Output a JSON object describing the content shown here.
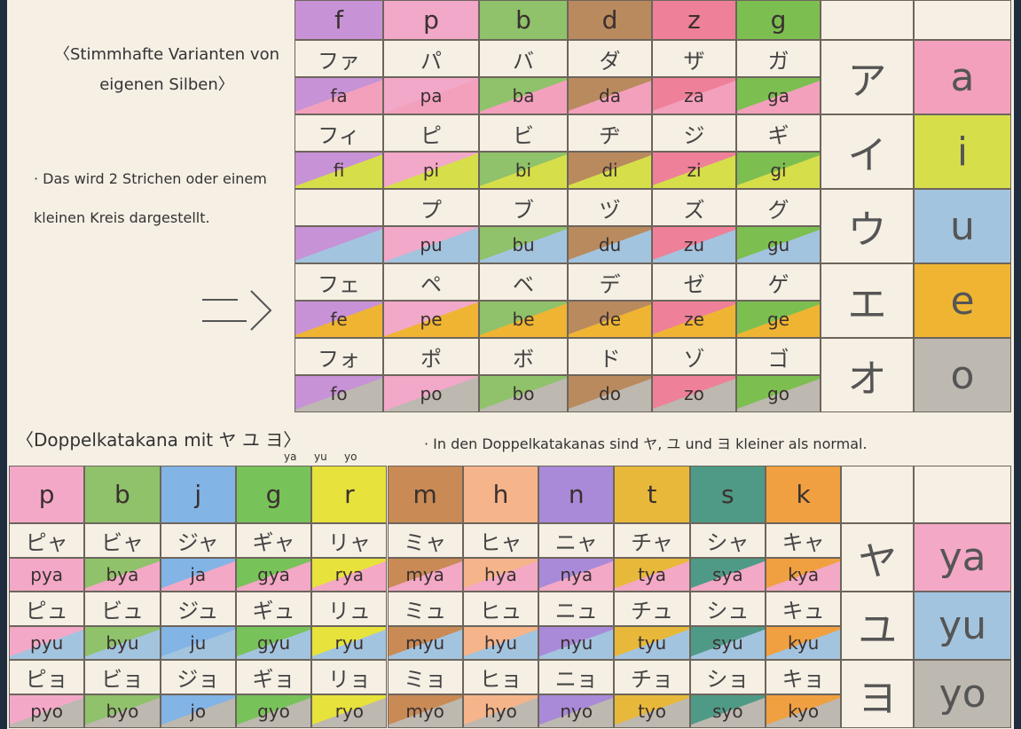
{
  "top": {
    "title": "〈Stimmhafte Varianten von eigenen Silben〉",
    "note": "· Das wird 2 Strichen oder einem kleinen Kreis dargestellt.",
    "headers": [
      "f",
      "p",
      "b",
      "d",
      "z",
      "g"
    ],
    "rows": [
      {
        "kana": "ア",
        "vowel": "a",
        "cells": [
          {
            "kana": "ファ",
            "romaji": "fa"
          },
          {
            "kana": "パ",
            "romaji": "pa"
          },
          {
            "kana": "バ",
            "romaji": "ba"
          },
          {
            "kana": "ダ",
            "romaji": "da"
          },
          {
            "kana": "ザ",
            "romaji": "za"
          },
          {
            "kana": "ガ",
            "romaji": "ga"
          }
        ]
      },
      {
        "kana": "イ",
        "vowel": "i",
        "cells": [
          {
            "kana": "フィ",
            "romaji": "fi"
          },
          {
            "kana": "ピ",
            "romaji": "pi"
          },
          {
            "kana": "ビ",
            "romaji": "bi"
          },
          {
            "kana": "ヂ",
            "romaji": "di"
          },
          {
            "kana": "ジ",
            "romaji": "zi"
          },
          {
            "kana": "ギ",
            "romaji": "gi"
          }
        ]
      },
      {
        "kana": "ウ",
        "vowel": "u",
        "cells": [
          null,
          {
            "kana": "プ",
            "romaji": "pu"
          },
          {
            "kana": "ブ",
            "romaji": "bu"
          },
          {
            "kana": "ヅ",
            "romaji": "du"
          },
          {
            "kana": "ズ",
            "romaji": "zu"
          },
          {
            "kana": "グ",
            "romaji": "gu"
          }
        ]
      },
      {
        "kana": "エ",
        "vowel": "e",
        "cells": [
          {
            "kana": "フェ",
            "romaji": "fe"
          },
          {
            "kana": "ペ",
            "romaji": "pe"
          },
          {
            "kana": "ベ",
            "romaji": "be"
          },
          {
            "kana": "デ",
            "romaji": "de"
          },
          {
            "kana": "ゼ",
            "romaji": "ze"
          },
          {
            "kana": "ゲ",
            "romaji": "ge"
          }
        ]
      },
      {
        "kana": "オ",
        "vowel": "o",
        "cells": [
          {
            "kana": "フォ",
            "romaji": "fo"
          },
          {
            "kana": "ポ",
            "romaji": "po"
          },
          {
            "kana": "ボ",
            "romaji": "bo"
          },
          {
            "kana": "ド",
            "romaji": "do"
          },
          {
            "kana": "ゾ",
            "romaji": "zo"
          },
          {
            "kana": "ゴ",
            "romaji": "go"
          }
        ]
      }
    ]
  },
  "bottom": {
    "title": "〈Doppelkatakana mit ヤ ユ ヨ〉",
    "readings": [
      "ya",
      "yu",
      "yo"
    ],
    "note": "· In den Doppelkatakanas sind ヤ, ユ und ヨ kleiner als normal.",
    "headers": [
      "p",
      "b",
      "j",
      "g",
      "r",
      "m",
      "h",
      "n",
      "t",
      "s",
      "k"
    ],
    "rows": [
      {
        "kana": "ヤ",
        "vowel": "ya",
        "cells": [
          {
            "kana": "ピャ",
            "romaji": "pya"
          },
          {
            "kana": "ビャ",
            "romaji": "bya"
          },
          {
            "kana": "ジャ",
            "romaji": "ja"
          },
          {
            "kana": "ギャ",
            "romaji": "gya"
          },
          {
            "kana": "リャ",
            "romaji": "rya"
          },
          {
            "kana": "ミャ",
            "romaji": "mya"
          },
          {
            "kana": "ヒャ",
            "romaji": "hya"
          },
          {
            "kana": "ニャ",
            "romaji": "nya"
          },
          {
            "kana": "チャ",
            "romaji": "tya"
          },
          {
            "kana": "シャ",
            "romaji": "sya"
          },
          {
            "kana": "キャ",
            "romaji": "kya"
          }
        ]
      },
      {
        "kana": "ユ",
        "vowel": "yu",
        "cells": [
          {
            "kana": "ピュ",
            "romaji": "pyu"
          },
          {
            "kana": "ビュ",
            "romaji": "byu"
          },
          {
            "kana": "ジュ",
            "romaji": "ju"
          },
          {
            "kana": "ギュ",
            "romaji": "gyu"
          },
          {
            "kana": "リュ",
            "romaji": "ryu"
          },
          {
            "kana": "ミュ",
            "romaji": "myu"
          },
          {
            "kana": "ヒュ",
            "romaji": "hyu"
          },
          {
            "kana": "ニュ",
            "romaji": "nyu"
          },
          {
            "kana": "チュ",
            "romaji": "tyu"
          },
          {
            "kana": "シュ",
            "romaji": "syu"
          },
          {
            "kana": "キュ",
            "romaji": "kyu"
          }
        ]
      },
      {
        "kana": "ヨ",
        "vowel": "yo",
        "cells": [
          {
            "kana": "ピョ",
            "romaji": "pyo"
          },
          {
            "kana": "ビョ",
            "romaji": "byo"
          },
          {
            "kana": "ジョ",
            "romaji": "jo"
          },
          {
            "kana": "ギョ",
            "romaji": "gyo"
          },
          {
            "kana": "リョ",
            "romaji": "ryo"
          },
          {
            "kana": "ミョ",
            "romaji": "myo"
          },
          {
            "kana": "ヒョ",
            "romaji": "hyo"
          },
          {
            "kana": "ニョ",
            "romaji": "nyo"
          },
          {
            "kana": "チョ",
            "romaji": "tyo"
          },
          {
            "kana": "ショ",
            "romaji": "syo"
          },
          {
            "kana": "キョ",
            "romaji": "kyo"
          }
        ]
      }
    ]
  }
}
